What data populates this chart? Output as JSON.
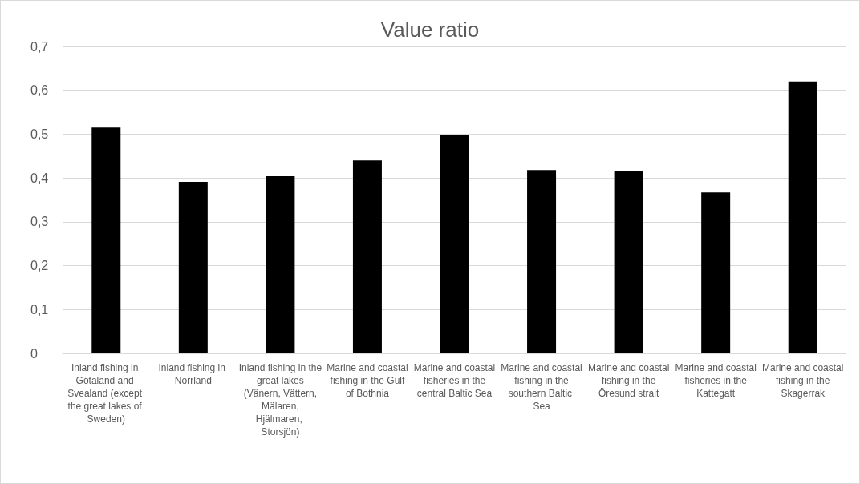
{
  "chart_data": {
    "type": "bar",
    "title": "Value ratio",
    "categories": [
      "Inland fishing in Götaland and Svealand (except the great lakes of Sweden)",
      "Inland fishing in Norrland",
      "Inland fishing in the great lakes (Vänern, Vättern, Mälaren, Hjälmaren, Storsjön)",
      "Marine and coastal fishing in the Gulf of Bothnia",
      "Marine and coastal fisheries in the central Baltic Sea",
      "Marine and coastal fishing in the southern Baltic Sea",
      "Marine and coastal fishing in the Öresund strait",
      "Marine and coastal fisheries in the Kattegatt",
      "Marine and coastal fishing in the Skagerrak"
    ],
    "values": [
      0.515,
      0.391,
      0.404,
      0.44,
      0.498,
      0.418,
      0.415,
      0.367,
      0.62
    ],
    "color": "#000000",
    "ylim": [
      0,
      0.7
    ],
    "yticks": [
      0,
      {
        "value": 0.1,
        "label": "0,1"
      },
      {
        "value": 0.2,
        "label": "0,2"
      },
      {
        "value": 0.3,
        "label": "0,3"
      },
      {
        "value": 0.4,
        "label": "0,4"
      },
      {
        "value": 0.5,
        "label": "0,5"
      },
      {
        "value": 0.6,
        "label": "0,6"
      },
      {
        "value": 0.7,
        "label": "0,7"
      }
    ],
    "grid": "y"
  }
}
